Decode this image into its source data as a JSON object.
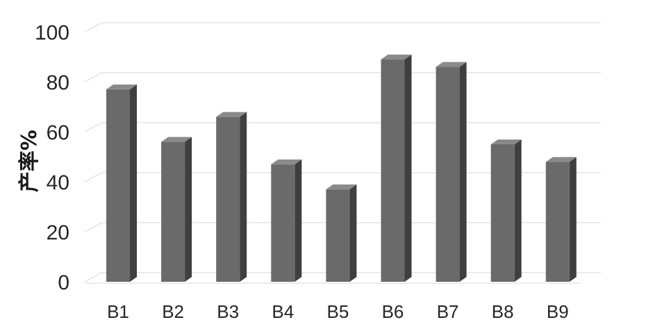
{
  "chart_data": {
    "type": "bar",
    "categories": [
      "B1",
      "B2",
      "B3",
      "B4",
      "B5",
      "B6",
      "B7",
      "B8",
      "B9"
    ],
    "values": [
      77,
      56,
      66,
      47,
      37,
      89,
      86,
      55,
      48
    ],
    "title": "",
    "xlabel": "",
    "ylabel": "产率%",
    "ylim": [
      0,
      100
    ],
    "yticks": [
      "0",
      "20",
      "40",
      "60",
      "80",
      "100"
    ],
    "grid": true,
    "legend": "none",
    "style": "3d",
    "colors": {
      "bar_front": "#6a6a6a",
      "bar_side": "#3f3f3f",
      "bar_top": "#8a8a8a",
      "grid": "#e4e4e4"
    }
  }
}
